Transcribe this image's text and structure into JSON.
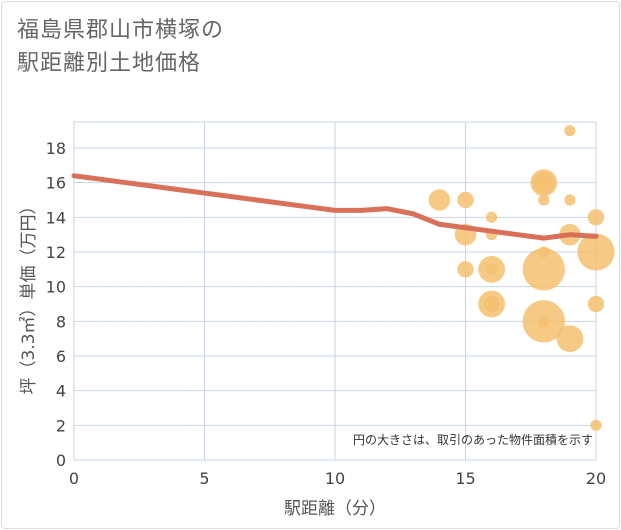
{
  "title_line1": "福島県郡山市横塚の",
  "title_line2": "駅距離別土地価格",
  "chart_data": {
    "type": "scatter",
    "title": "福島県郡山市横塚の駅距離別土地価格",
    "xlabel": "駅距離（分）",
    "ylabel": "坪（3.3㎡）単価（万円）",
    "xlim": [
      0,
      20
    ],
    "ylim": [
      0,
      19.5
    ],
    "xticks": [
      0,
      5,
      10,
      15,
      20
    ],
    "yticks": [
      0,
      2,
      4,
      6,
      8,
      10,
      12,
      14,
      16,
      18
    ],
    "grid": true,
    "annotation": "円の大きさは、取引のあった物件面積を示す",
    "colors": {
      "bubble": "#f5c06e",
      "trend": "#d9705a",
      "grid": "#c8d4e3"
    },
    "points": [
      {
        "x": 14,
        "y": 15,
        "size": 3
      },
      {
        "x": 15,
        "y": 15,
        "size": 2
      },
      {
        "x": 15,
        "y": 13,
        "size": 3
      },
      {
        "x": 15,
        "y": 11,
        "size": 2
      },
      {
        "x": 16,
        "y": 14,
        "size": 1
      },
      {
        "x": 16,
        "y": 13,
        "size": 1
      },
      {
        "x": 16,
        "y": 11,
        "size": 4
      },
      {
        "x": 16,
        "y": 11,
        "size": 1
      },
      {
        "x": 16,
        "y": 9,
        "size": 4
      },
      {
        "x": 16,
        "y": 9,
        "size": 2
      },
      {
        "x": 18,
        "y": 16,
        "size": 4
      },
      {
        "x": 18,
        "y": 16,
        "size": 3
      },
      {
        "x": 18,
        "y": 15,
        "size": 1
      },
      {
        "x": 18,
        "y": 12,
        "size": 1
      },
      {
        "x": 18,
        "y": 11,
        "size": 7
      },
      {
        "x": 18,
        "y": 8,
        "size": 7
      },
      {
        "x": 18,
        "y": 8,
        "size": 1
      },
      {
        "x": 19,
        "y": 19,
        "size": 1
      },
      {
        "x": 19,
        "y": 15,
        "size": 1
      },
      {
        "x": 19,
        "y": 13,
        "size": 3
      },
      {
        "x": 19,
        "y": 7,
        "size": 4
      },
      {
        "x": 20,
        "y": 14,
        "size": 2
      },
      {
        "x": 20,
        "y": 12,
        "size": 6
      },
      {
        "x": 20,
        "y": 9,
        "size": 2
      },
      {
        "x": 20,
        "y": 2,
        "size": 1
      }
    ],
    "trend": {
      "name": "trend",
      "x": [
        0,
        1,
        2,
        3,
        4,
        5,
        6,
        7,
        8,
        9,
        10,
        11,
        12,
        13,
        14,
        15,
        16,
        17,
        18,
        19,
        20
      ],
      "y": [
        16.4,
        16.2,
        16.0,
        15.8,
        15.6,
        15.4,
        15.2,
        15.0,
        14.8,
        14.6,
        14.4,
        14.4,
        14.5,
        14.2,
        13.6,
        13.4,
        13.2,
        13.0,
        12.8,
        13.0,
        12.9
      ]
    }
  }
}
